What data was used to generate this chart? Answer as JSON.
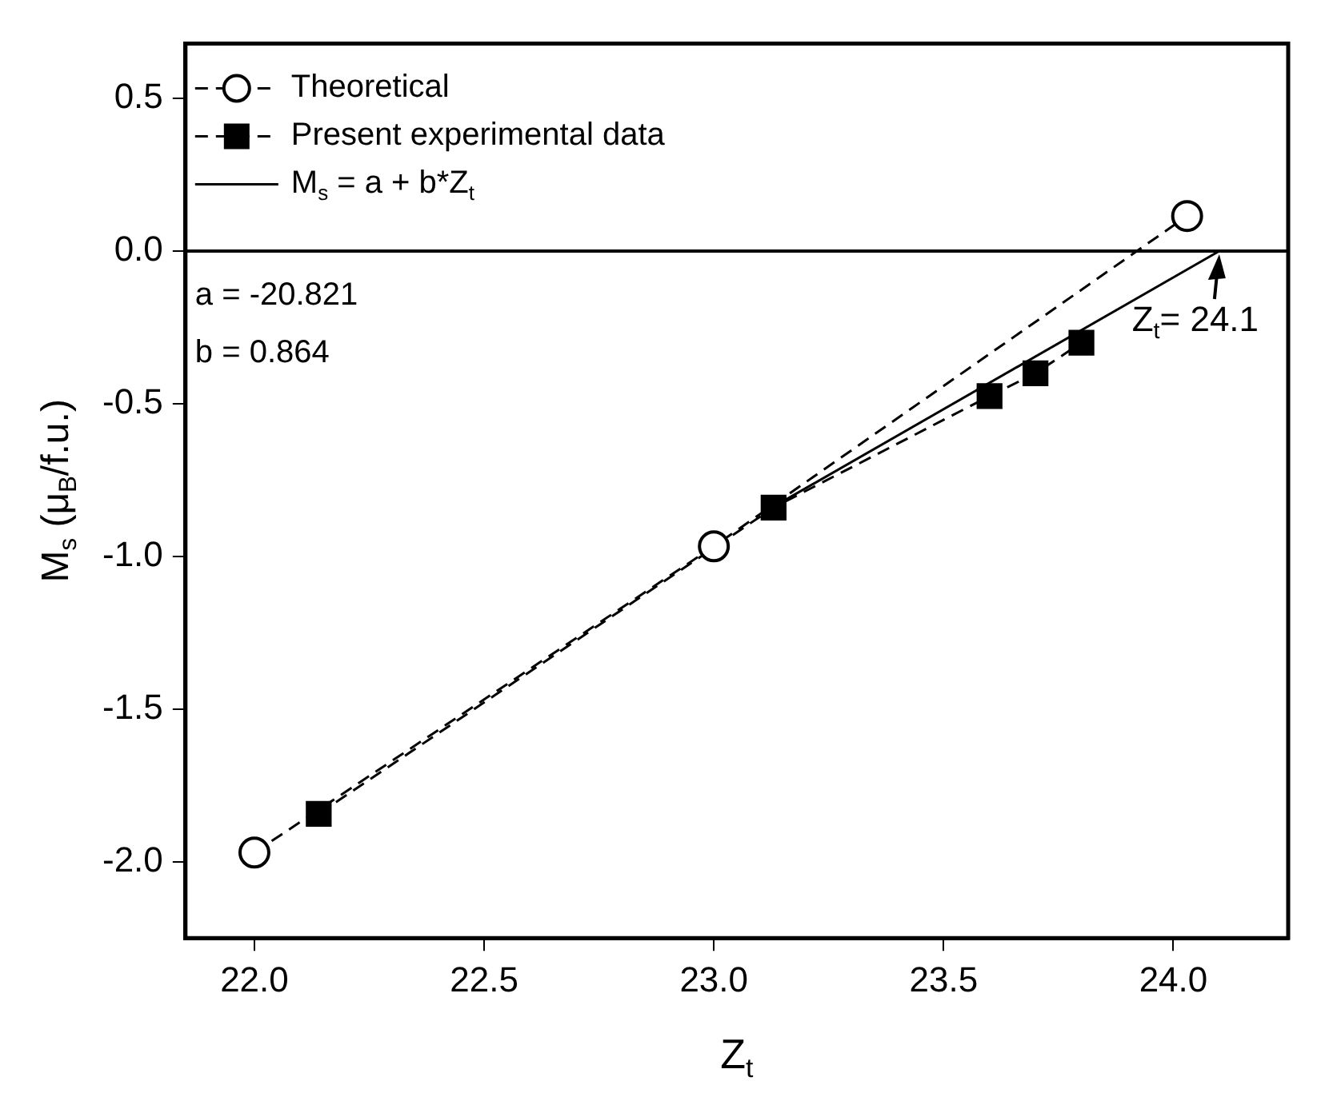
{
  "chart_data": {
    "type": "line",
    "xlabel": "Z$_{t}$",
    "ylabel": "M$_{s}$ (μ$_{B}$/f.u.)",
    "xlim": [
      21.85,
      24.25
    ],
    "xticks": [
      {
        "value": 22,
        "label": "22.0"
      },
      22.5,
      {
        "value": 23,
        "label": "23.0"
      },
      23.5,
      {
        "value": 24,
        "label": "24.0"
      }
    ],
    "ylim": [
      -2.25,
      0.68
    ],
    "yticks": [
      0.5,
      {
        "value": 0,
        "label": "0.0"
      },
      -0.5,
      {
        "value": -1,
        "label": "-1.0"
      },
      -1.5,
      {
        "value": -2,
        "label": "-2.0"
      }
    ],
    "grid": false,
    "legend": "top left",
    "series": [
      {
        "name": "Theoretical",
        "color": "#000000",
        "x": [
          22.0,
          23.0,
          24.03
        ],
        "values": [
          -1.97,
          -0.967,
          0.115
        ],
        "marker": "circle",
        "line_style": "dashed"
      },
      {
        "name": "Present experimental data",
        "color": "#000000",
        "x": [
          22.14,
          23.13,
          23.6,
          23.7,
          23.8
        ],
        "values": [
          -1.843,
          -0.84,
          -0.475,
          -0.4,
          -0.3
        ],
        "marker": "square",
        "line_style": "dashed"
      },
      {
        "name": "M$_{s}$ = a + b*Z$_{t}$",
        "color": "#000000",
        "x": [
          23.13,
          24.1
        ],
        "values": [
          -0.837,
          0.0
        ],
        "marker": "none",
        "line_style": "solid"
      }
    ],
    "ref_lines": [
      {
        "axis": "y",
        "value": 0.0
      }
    ],
    "annotations": [
      "a = -20.821",
      "b = 0.864",
      {
        "text": "Z$_{t}$= 24.1",
        "x": 24.1,
        "y": 0.0
      }
    ]
  }
}
